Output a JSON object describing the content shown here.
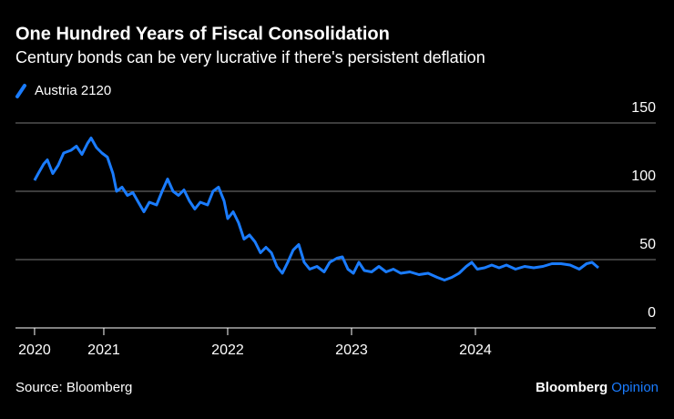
{
  "chart_data": {
    "type": "line",
    "title": "One Hundred Years of Fiscal Consolidation",
    "subtitle": "Century bonds can be very lucrative if there's persistent deflation",
    "source": "Source: Bloomberg",
    "brand": [
      "Bloomberg",
      "Opinion"
    ],
    "x": [
      2020.441,
      2020.471,
      2020.515,
      2020.544,
      2020.588,
      2020.632,
      2020.676,
      2020.735,
      2020.779,
      2020.824,
      2020.868,
      2020.897,
      2020.941,
      2020.985,
      2021.029,
      2021.074,
      2021.103,
      2021.147,
      2021.191,
      2021.235,
      2021.279,
      2021.324,
      2021.368,
      2021.426,
      2021.471,
      2021.515,
      2021.559,
      2021.603,
      2021.647,
      2021.691,
      2021.735,
      2021.779,
      2021.838,
      2021.882,
      2021.926,
      2021.971,
      2022.0,
      2022.044,
      2022.088,
      2022.132,
      2022.176,
      2022.221,
      2022.265,
      2022.309,
      2022.353,
      2022.397,
      2022.441,
      2022.485,
      2022.529,
      2022.574,
      2022.618,
      2022.662,
      2022.721,
      2022.779,
      2022.824,
      2022.882,
      2022.926,
      2022.971,
      2023.015,
      2023.059,
      2023.103,
      2023.162,
      2023.221,
      2023.279,
      2023.338,
      2023.397,
      2023.471,
      2023.544,
      2023.618,
      2023.691,
      2023.75,
      2023.809,
      2023.868,
      2023.926,
      2023.971,
      2024.015,
      2024.074,
      2024.132,
      2024.191,
      2024.25,
      2024.324,
      2024.397,
      2024.471,
      2024.544,
      2024.618,
      2024.691,
      2024.765,
      2024.838,
      2024.897,
      2024.941,
      2024.993
    ],
    "series": [
      {
        "name": "Austria 2120",
        "color": "#1a7cff",
        "values": [
          108,
          113,
          120,
          123,
          113,
          119,
          128,
          130,
          133,
          127,
          135,
          139,
          132,
          128,
          125,
          113,
          100,
          103,
          97,
          99,
          92,
          85,
          92,
          90,
          100,
          109,
          100,
          97,
          101,
          93,
          87,
          92,
          90,
          100,
          103,
          93,
          80,
          85,
          77,
          65,
          68,
          63,
          55,
          59,
          55,
          45,
          40,
          48,
          57,
          61,
          48,
          43,
          45,
          41,
          48,
          51,
          52,
          43,
          40,
          48,
          42,
          41,
          45,
          41,
          43,
          40,
          41,
          39,
          40,
          37,
          35,
          37,
          40,
          45,
          48,
          43,
          44,
          46,
          44,
          46,
          43,
          45,
          44,
          45,
          47,
          47,
          46,
          43,
          47,
          48,
          44
        ]
      }
    ],
    "xlim": [
      2020.287,
      2025.456
    ],
    "xticks": [
      {
        "value": 2020.441,
        "label": "2020"
      },
      2021,
      2022,
      2023,
      2024
    ],
    "ylim": [
      0,
      150
    ],
    "yticks": [
      0,
      50,
      100,
      150
    ],
    "grid": true
  }
}
